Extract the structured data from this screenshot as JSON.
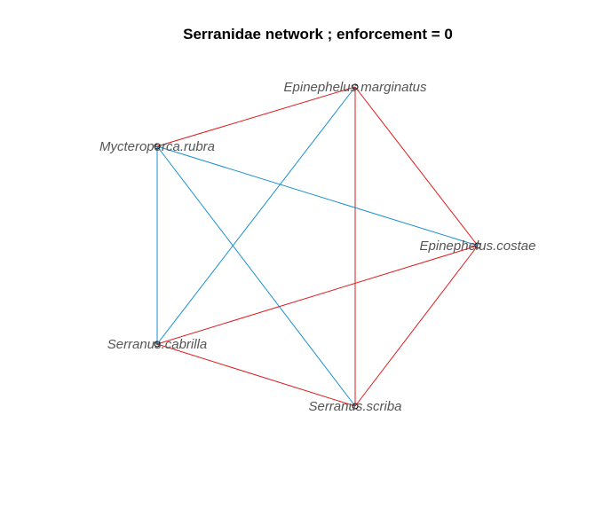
{
  "title": "Serranidae network ; enforcement = 0",
  "colors": {
    "positive_edge": "#DF1A1A",
    "negative_edge": "#1A8FCF",
    "node_stroke": "#000000",
    "label": "#555555"
  },
  "nodes": [
    {
      "id": "em",
      "label": "Epinephelus.marginatus"
    },
    {
      "id": "mr",
      "label": "Mycteroperca.rubra"
    },
    {
      "id": "ec",
      "label": "Epinephelus.costae"
    },
    {
      "id": "sc",
      "label": "Serranus.cabrilla"
    },
    {
      "id": "ss",
      "label": "Serranus.scriba"
    }
  ],
  "edges": [
    {
      "from": "em",
      "to": "mr",
      "color": "red"
    },
    {
      "from": "em",
      "to": "ec",
      "color": "red"
    },
    {
      "from": "em",
      "to": "ss",
      "color": "red"
    },
    {
      "from": "em",
      "to": "sc",
      "color": "blue"
    },
    {
      "from": "mr",
      "to": "ec",
      "color": "blue"
    },
    {
      "from": "mr",
      "to": "sc",
      "color": "blue"
    },
    {
      "from": "mr",
      "to": "ss",
      "color": "blue"
    },
    {
      "from": "ec",
      "to": "sc",
      "color": "red"
    },
    {
      "from": "ec",
      "to": "ss",
      "color": "red"
    },
    {
      "from": "sc",
      "to": "ss",
      "color": "red"
    }
  ]
}
